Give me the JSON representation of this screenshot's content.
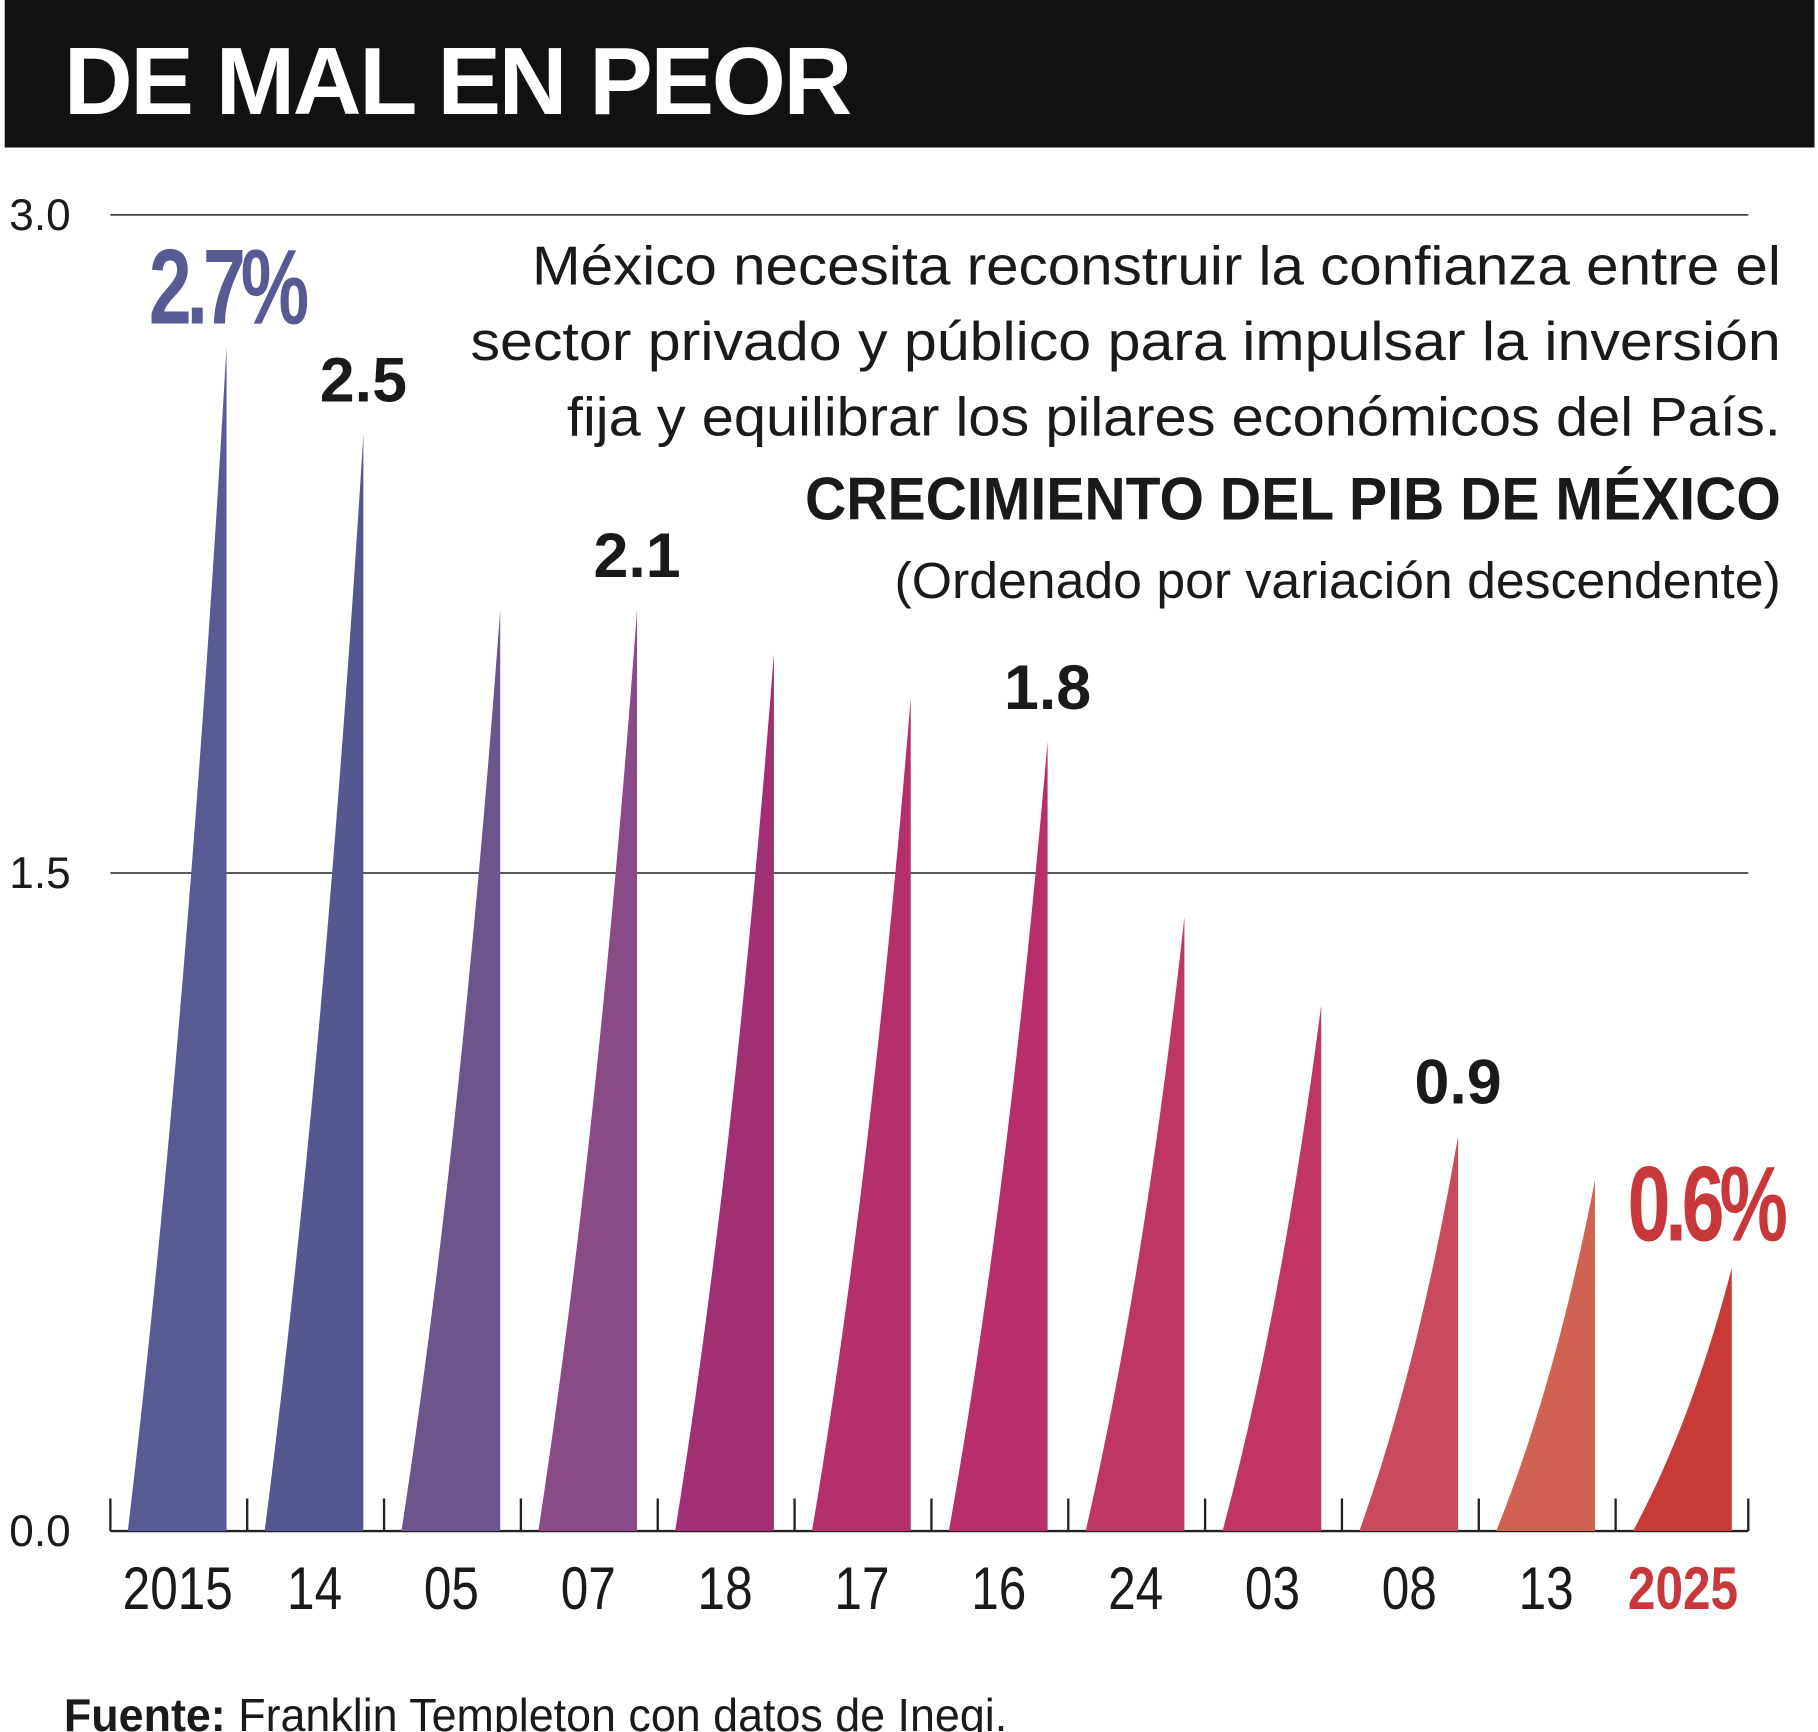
{
  "header": {
    "title": "DE MAL EN PEOR"
  },
  "description": [
    "México necesita reconstruir la confianza entre el",
    "sector privado y público para impulsar la inversión",
    "fija y equilibrar los pilares económicos del País."
  ],
  "footer": {
    "source_label": "Fuente:",
    "source_text": " Franklin Templeton con datos de Inegi."
  },
  "chart_data": {
    "type": "bar",
    "title": "CRECIMIENTO DEL PIB DE MÉXICO",
    "subtitle": "(Ordenado por variación descendente)",
    "categories": [
      "2015",
      "14",
      "05",
      "07",
      "18",
      "17",
      "16",
      "24",
      "03",
      "08",
      "13",
      "2025"
    ],
    "values": [
      2.7,
      2.5,
      2.1,
      2.1,
      2.0,
      1.9,
      1.8,
      1.4,
      1.2,
      0.9,
      0.8,
      0.6
    ],
    "colors": [
      "#575a93",
      "#555890",
      "#6c548c",
      "#8a4a87",
      "#a02f74",
      "#b52f6b",
      "#b82e6a",
      "#bf3566",
      "#c13565",
      "#c84a5c",
      "#d06251",
      "#c83a35"
    ],
    "data_labels": [
      {
        "index": 0,
        "text": "2.7%",
        "color": "#575a93"
      },
      {
        "index": 1,
        "text": "2.5",
        "color": "#1a1a1a"
      },
      {
        "index": 3,
        "text": "2.1",
        "color": "#1a1a1a"
      },
      {
        "index": 6,
        "text": "1.8",
        "color": "#1a1a1a"
      },
      {
        "index": 9,
        "text": "0.9",
        "color": "#1a1a1a"
      },
      {
        "index": 11,
        "text": "0.6%",
        "color": "#c8373a"
      }
    ],
    "highlight_category_color": "#c8373a",
    "yticks": [
      "0.0",
      "1.5",
      "3.0"
    ],
    "ylim": [
      0,
      3.0
    ],
    "grid": true
  }
}
